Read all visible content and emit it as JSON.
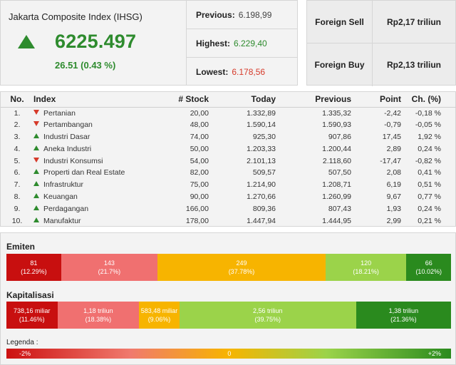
{
  "composite": {
    "title": "Jakarta Composite Index (IHSG)",
    "value": "6225.497",
    "change": "26.51 (0.43 %)",
    "direction": "up",
    "up_color": "#2e8b2e",
    "down_color": "#d63a2a"
  },
  "stats": {
    "previous_label": "Previous:",
    "previous_value": "6.198,99",
    "highest_label": "Highest:",
    "highest_value": "6.229,40",
    "lowest_label": "Lowest:",
    "lowest_value": "6.178,56"
  },
  "foreign": {
    "sell_label": "Foreign Sell",
    "sell_value": "Rp2,17 triliun",
    "buy_label": "Foreign Buy",
    "buy_value": "Rp2,13 triliun"
  },
  "sector_table": {
    "headers": {
      "no": "No.",
      "index": "Index",
      "stock": "# Stock",
      "today": "Today",
      "previous": "Previous",
      "point": "Point",
      "change": "Ch. (%)"
    },
    "rows": [
      {
        "no": "1.",
        "dir": "down",
        "index": "Pertanian",
        "stock": "20,00",
        "today": "1.332,89",
        "previous": "1.335,32",
        "point": "-2,42",
        "change": "-0,18 %"
      },
      {
        "no": "2.",
        "dir": "down",
        "index": "Pertambangan",
        "stock": "48,00",
        "today": "1.590,14",
        "previous": "1.590,93",
        "point": "-0,79",
        "change": "-0,05 %"
      },
      {
        "no": "3.",
        "dir": "up",
        "index": "Industri Dasar",
        "stock": "74,00",
        "today": "925,30",
        "previous": "907,86",
        "point": "17,45",
        "change": "1,92 %"
      },
      {
        "no": "4.",
        "dir": "up",
        "index": "Aneka Industri",
        "stock": "50,00",
        "today": "1.203,33",
        "previous": "1.200,44",
        "point": "2,89",
        "change": "0,24 %"
      },
      {
        "no": "5.",
        "dir": "down",
        "index": "Industri Konsumsi",
        "stock": "54,00",
        "today": "2.101,13",
        "previous": "2.118,60",
        "point": "-17,47",
        "change": "-0,82 %"
      },
      {
        "no": "6.",
        "dir": "up",
        "index": "Properti dan Real Estate",
        "stock": "82,00",
        "today": "509,57",
        "previous": "507,50",
        "point": "2,08",
        "change": "0,41 %"
      },
      {
        "no": "7.",
        "dir": "up",
        "index": "Infrastruktur",
        "stock": "75,00",
        "today": "1.214,90",
        "previous": "1.208,71",
        "point": "6,19",
        "change": "0,51 %"
      },
      {
        "no": "8.",
        "dir": "up",
        "index": "Keuangan",
        "stock": "90,00",
        "today": "1.270,66",
        "previous": "1.260,99",
        "point": "9,67",
        "change": "0,77 %"
      },
      {
        "no": "9.",
        "dir": "up",
        "index": "Perdagangan",
        "stock": "166,00",
        "today": "809,36",
        "previous": "807,43",
        "point": "1,93",
        "change": "0,24 %"
      },
      {
        "no": "10.",
        "dir": "up",
        "index": "Manufaktur",
        "stock": "178,00",
        "today": "1.447,94",
        "previous": "1.444,95",
        "point": "2,99",
        "change": "0,21 %"
      }
    ]
  },
  "emiten": {
    "title": "Emiten",
    "segments": [
      {
        "value": "81",
        "pct": "(12.29%)",
        "share": 12.29,
        "color": "#c80f0f"
      },
      {
        "value": "143",
        "pct": "(21.7%)",
        "share": 21.7,
        "color": "#f07070"
      },
      {
        "value": "249",
        "pct": "(37.78%)",
        "share": 37.78,
        "color": "#f7b400"
      },
      {
        "value": "120",
        "pct": "(18.21%)",
        "share": 18.21,
        "color": "#9bd34a"
      },
      {
        "value": "66",
        "pct": "(10.02%)",
        "share": 10.02,
        "color": "#2a8a1e"
      }
    ]
  },
  "kapitalisasi": {
    "title": "Kapitalisasi",
    "segments": [
      {
        "value": "738,16 miliar",
        "pct": "(11.46%)",
        "share": 11.46,
        "color": "#c80f0f"
      },
      {
        "value": "1,18 triliun",
        "pct": "(18.38%)",
        "share": 18.38,
        "color": "#f07070"
      },
      {
        "value": "583,48 miliar",
        "pct": "(9.06%)",
        "share": 9.06,
        "color": "#f7b400"
      },
      {
        "value": "2,56 triliun",
        "pct": "(39.75%)",
        "share": 39.75,
        "color": "#9bd34a"
      },
      {
        "value": "1,38 triliun",
        "pct": "(21.36%)",
        "share": 21.36,
        "color": "#2a8a1e"
      }
    ]
  },
  "legend": {
    "title": "Legenda :",
    "min": "-2%",
    "mid": "0",
    "max": "+2%"
  }
}
